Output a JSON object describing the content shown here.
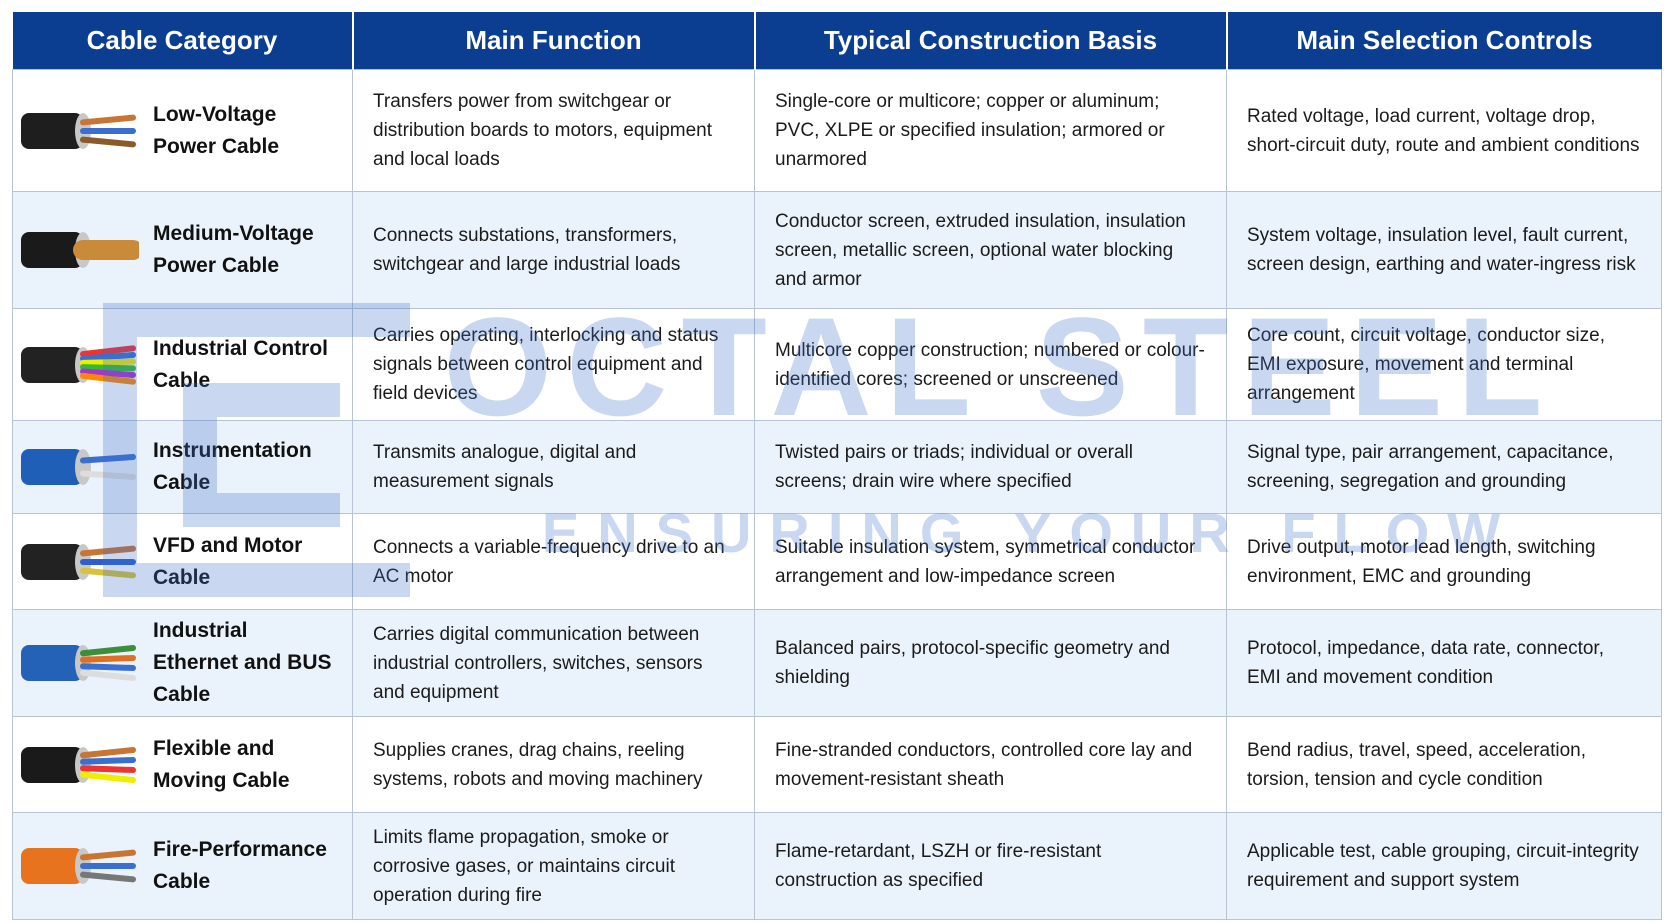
{
  "table": {
    "columns": [
      "Cable Category",
      "Main Function",
      "Typical Construction Basis",
      "Main Selection Controls"
    ],
    "rows": [
      [
        "Low-Voltage Power Cable",
        "Transfers power from switchgear or distribution boards to motors, equipment and local loads",
        "Single-core or multicore; copper or aluminum; PVC, XLPE or specified insulation; armored or unarmored",
        "Rated voltage, load current, voltage drop, short-circuit duty, route and ambient conditions"
      ],
      [
        "Medium-Voltage Power Cable",
        "Connects substations, transformers, switchgear and large industrial loads",
        "Conductor screen, extruded insulation, insulation screen, metallic screen, optional water blocking and armor",
        "System voltage, insulation level, fault current, screen design, earthing and water-ingress risk"
      ],
      [
        "Industrial Control Cable",
        "Carries operating, interlocking and status signals between control equipment and field devices",
        "Multicore copper construction; numbered or colour-identified cores; screened or unscreened",
        "Core count, circuit voltage, conductor size, EMI exposure, movement and terminal arrangement"
      ],
      [
        "Instrumentation Cable",
        "Transmits analogue, digital and measurement signals",
        "Twisted pairs or triads; individual or overall screens; drain wire where specified",
        "Signal type, pair arrangement, capacitance, screening, segregation and grounding"
      ],
      [
        "VFD and Motor Cable",
        "Connects a variable-frequency drive to an AC motor",
        "Suitable insulation system, symmetrical conductor arrangement and low-impedance screen",
        "Drive output, motor lead length, switching environment, EMC and grounding"
      ],
      [
        "Industrial Ethernet and BUS Cable",
        "Carries digital communication between industrial controllers, switches, sensors and equipment",
        "Balanced pairs, protocol-specific geometry and shielding",
        "Protocol, impedance, data rate, connector, EMI and movement condition"
      ],
      [
        "Flexible and Moving Cable",
        "Supplies cranes, drag chains, reeling systems, robots and moving machinery",
        "Fine-stranded conductors, controlled core lay and movement-resistant sheath",
        "Bend radius, travel, speed, acceleration, torsion, tension and cycle condition"
      ],
      [
        "Fire-Performance Cable",
        "Limits flame propagation, smoke or corrosive gases, or maintains circuit operation during fire",
        "Flame-retardant, LSZH or fire-resistant construction as specified",
        "Applicable test, cable grouping, circuit-integrity requirement and support system"
      ]
    ]
  },
  "watermark": {
    "brand": "OCTAL STEEL",
    "tagline": "ENSURING YOUR FLOW"
  }
}
